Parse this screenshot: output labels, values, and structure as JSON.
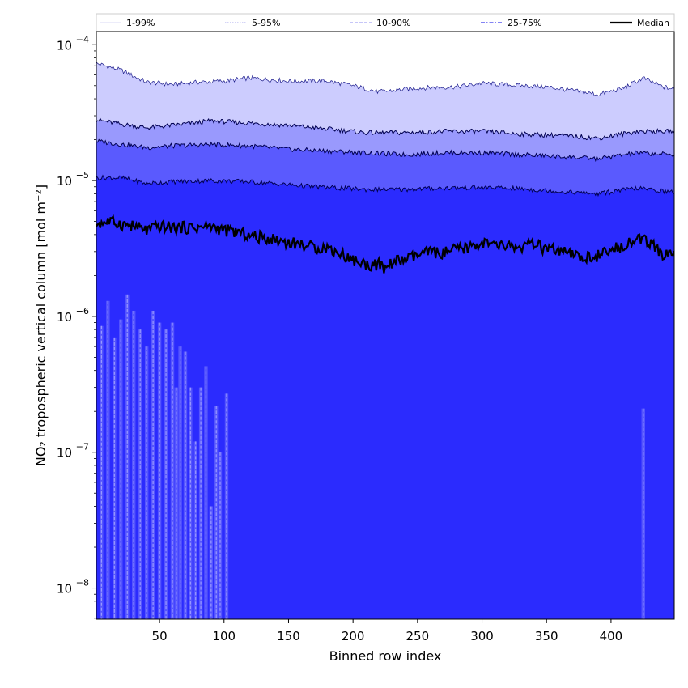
{
  "chart_data": {
    "type": "area",
    "x_range": [
      1,
      449
    ],
    "y_range": [
      5.9e-09,
      0.000125
    ],
    "y_scale": "log",
    "xlabel": "Binned row index",
    "ylabel": "NO₂ tropospheric vertical column [mol m⁻²]",
    "x_ticks": [
      {
        "value": 50,
        "label": "50"
      },
      {
        "value": 100,
        "label": "100"
      },
      {
        "value": 150,
        "label": "150"
      },
      {
        "value": 200,
        "label": "200"
      },
      {
        "value": 250,
        "label": "250"
      },
      {
        "value": 300,
        "label": "300"
      },
      {
        "value": 350,
        "label": "350"
      },
      {
        "value": 400,
        "label": "400"
      }
    ],
    "y_ticks": [
      {
        "value": 1e-08,
        "base": "10",
        "exp": "−8"
      },
      {
        "value": 1e-07,
        "base": "10",
        "exp": "−7"
      },
      {
        "value": 1e-06,
        "base": "10",
        "exp": "−6"
      },
      {
        "value": 1e-05,
        "base": "10",
        "exp": "−5"
      },
      {
        "value": 0.0001,
        "base": "10",
        "exp": "−4"
      }
    ],
    "legend": {
      "placement": "top, spanning full width",
      "entries": [
        {
          "label": "1-99%",
          "color": "#d8d8f4",
          "style": "solid-thin"
        },
        {
          "label": "5-95%",
          "color": "#a9a9ee",
          "style": "dotted"
        },
        {
          "label": "10-90%",
          "color": "#8c8cf0",
          "style": "dashed"
        },
        {
          "label": "25-75%",
          "color": "#5a5af0",
          "style": "dashdot"
        },
        {
          "label": "Median",
          "color": "#000000",
          "style": "solid-thick"
        }
      ]
    },
    "bands": [
      {
        "name": "1-99%",
        "color": "#ccccfe",
        "upper": [
          [
            1,
            7.3e-05
          ],
          [
            20,
            6.5e-05
          ],
          [
            40,
            5.3e-05
          ],
          [
            60,
            5.1e-05
          ],
          [
            80,
            5.3e-05
          ],
          [
            100,
            5.4e-05
          ],
          [
            120,
            5.7e-05
          ],
          [
            150,
            5.4e-05
          ],
          [
            180,
            5.4e-05
          ],
          [
            200,
            5e-05
          ],
          [
            220,
            4.5e-05
          ],
          [
            250,
            4.8e-05
          ],
          [
            280,
            4.9e-05
          ],
          [
            300,
            5.2e-05
          ],
          [
            330,
            5e-05
          ],
          [
            350,
            4.9e-05
          ],
          [
            370,
            4.6e-05
          ],
          [
            390,
            4.3e-05
          ],
          [
            410,
            4.8e-05
          ],
          [
            425,
            5.7e-05
          ],
          [
            440,
            4.9e-05
          ],
          [
            449,
            4.7e-05
          ]
        ],
        "lower_upper": [
          [
            1,
            2.8e-05
          ],
          [
            20,
            2.6e-05
          ],
          [
            40,
            2.45e-05
          ],
          [
            60,
            2.55e-05
          ],
          [
            90,
            2.75e-05
          ],
          [
            120,
            2.65e-05
          ],
          [
            150,
            2.55e-05
          ],
          [
            180,
            2.4e-05
          ],
          [
            210,
            2.25e-05
          ],
          [
            240,
            2.25e-05
          ],
          [
            270,
            2.3e-05
          ],
          [
            300,
            2.3e-05
          ],
          [
            330,
            2.2e-05
          ],
          [
            360,
            2.15e-05
          ],
          [
            390,
            2.05e-05
          ],
          [
            420,
            2.3e-05
          ],
          [
            449,
            2.3e-05
          ]
        ]
      },
      {
        "name": "5-95%",
        "color": "#9999fd",
        "upper": [
          [
            1,
            2.8e-05
          ],
          [
            20,
            2.6e-05
          ],
          [
            40,
            2.45e-05
          ],
          [
            60,
            2.55e-05
          ],
          [
            90,
            2.75e-05
          ],
          [
            120,
            2.65e-05
          ],
          [
            150,
            2.55e-05
          ],
          [
            180,
            2.4e-05
          ],
          [
            210,
            2.25e-05
          ],
          [
            240,
            2.25e-05
          ],
          [
            270,
            2.3e-05
          ],
          [
            300,
            2.3e-05
          ],
          [
            330,
            2.2e-05
          ],
          [
            360,
            2.15e-05
          ],
          [
            390,
            2.05e-05
          ],
          [
            420,
            2.3e-05
          ],
          [
            449,
            2.3e-05
          ]
        ],
        "lower_upper": [
          [
            1,
            1.95e-05
          ],
          [
            20,
            1.85e-05
          ],
          [
            40,
            1.75e-05
          ],
          [
            60,
            1.8e-05
          ],
          [
            90,
            1.85e-05
          ],
          [
            120,
            1.8e-05
          ],
          [
            150,
            1.7e-05
          ],
          [
            180,
            1.65e-05
          ],
          [
            210,
            1.6e-05
          ],
          [
            240,
            1.55e-05
          ],
          [
            270,
            1.6e-05
          ],
          [
            300,
            1.6e-05
          ],
          [
            330,
            1.55e-05
          ],
          [
            360,
            1.5e-05
          ],
          [
            390,
            1.45e-05
          ],
          [
            420,
            1.6e-05
          ],
          [
            449,
            1.55e-05
          ]
        ]
      },
      {
        "name": "10-90%",
        "color": "#5a5afe",
        "upper": [
          [
            1,
            1.95e-05
          ],
          [
            20,
            1.85e-05
          ],
          [
            40,
            1.75e-05
          ],
          [
            60,
            1.8e-05
          ],
          [
            90,
            1.85e-05
          ],
          [
            120,
            1.8e-05
          ],
          [
            150,
            1.7e-05
          ],
          [
            180,
            1.65e-05
          ],
          [
            210,
            1.6e-05
          ],
          [
            240,
            1.55e-05
          ],
          [
            270,
            1.6e-05
          ],
          [
            300,
            1.6e-05
          ],
          [
            330,
            1.55e-05
          ],
          [
            360,
            1.5e-05
          ],
          [
            390,
            1.45e-05
          ],
          [
            420,
            1.6e-05
          ],
          [
            449,
            1.55e-05
          ]
        ],
        "lower_upper": [
          [
            1,
            1.05e-05
          ],
          [
            20,
            1.05e-05
          ],
          [
            40,
            9.5e-06
          ],
          [
            60,
            9.8e-06
          ],
          [
            90,
            1e-05
          ],
          [
            120,
            9.8e-06
          ],
          [
            150,
            9.3e-06
          ],
          [
            180,
            8.9e-06
          ],
          [
            210,
            8.6e-06
          ],
          [
            240,
            8.6e-06
          ],
          [
            270,
            8.8e-06
          ],
          [
            300,
            8.9e-06
          ],
          [
            330,
            8.7e-06
          ],
          [
            360,
            8.3e-06
          ],
          [
            390,
            8e-06
          ],
          [
            420,
            8.8e-06
          ],
          [
            449,
            8.2e-06
          ]
        ]
      },
      {
        "name": "25-75%",
        "color": "#2b2bfe",
        "upper": [
          [
            1,
            1.05e-05
          ],
          [
            20,
            1.05e-05
          ],
          [
            40,
            9.5e-06
          ],
          [
            60,
            9.8e-06
          ],
          [
            90,
            1e-05
          ],
          [
            120,
            9.8e-06
          ],
          [
            150,
            9.3e-06
          ],
          [
            180,
            8.9e-06
          ],
          [
            210,
            8.6e-06
          ],
          [
            240,
            8.6e-06
          ],
          [
            270,
            8.8e-06
          ],
          [
            300,
            8.9e-06
          ],
          [
            330,
            8.7e-06
          ],
          [
            360,
            8.3e-06
          ],
          [
            390,
            8e-06
          ],
          [
            420,
            8.8e-06
          ],
          [
            449,
            8.2e-06
          ]
        ],
        "lower_upper": [
          [
            1,
            5.9e-09
          ],
          [
            449,
            5.9e-09
          ]
        ]
      }
    ],
    "median": [
      [
        1,
        4.8e-06
      ],
      [
        10,
        5e-06
      ],
      [
        20,
        4.8e-06
      ],
      [
        30,
        4.6e-06
      ],
      [
        40,
        4.3e-06
      ],
      [
        50,
        4.6e-06
      ],
      [
        60,
        4.5e-06
      ],
      [
        70,
        4.5e-06
      ],
      [
        80,
        4.5e-06
      ],
      [
        90,
        4.6e-06
      ],
      [
        100,
        4.3e-06
      ],
      [
        110,
        4.2e-06
      ],
      [
        120,
        3.9e-06
      ],
      [
        130,
        3.8e-06
      ],
      [
        140,
        3.7e-06
      ],
      [
        150,
        3.5e-06
      ],
      [
        160,
        3.4e-06
      ],
      [
        170,
        3.2e-06
      ],
      [
        180,
        3.2e-06
      ],
      [
        190,
        2.9e-06
      ],
      [
        200,
        2.6e-06
      ],
      [
        210,
        2.4e-06
      ],
      [
        220,
        2.4e-06
      ],
      [
        225,
        2.2e-06
      ],
      [
        230,
        2.5e-06
      ],
      [
        240,
        2.6e-06
      ],
      [
        250,
        2.8e-06
      ],
      [
        260,
        3e-06
      ],
      [
        270,
        2.9e-06
      ],
      [
        280,
        3.1e-06
      ],
      [
        290,
        3.2e-06
      ],
      [
        300,
        3.5e-06
      ],
      [
        310,
        3.3e-06
      ],
      [
        320,
        3.3e-06
      ],
      [
        330,
        3.2e-06
      ],
      [
        340,
        3.4e-06
      ],
      [
        350,
        3.1e-06
      ],
      [
        360,
        3e-06
      ],
      [
        370,
        2.8e-06
      ],
      [
        380,
        2.7e-06
      ],
      [
        390,
        2.8e-06
      ],
      [
        400,
        3e-06
      ],
      [
        410,
        3.4e-06
      ],
      [
        420,
        3.7e-06
      ],
      [
        430,
        3.5e-06
      ],
      [
        440,
        2.8e-06
      ],
      [
        449,
        3e-06
      ]
    ],
    "low_percentile_spikes": [
      {
        "x": 5,
        "top": 8.5e-07,
        "bottom": 5.9e-09
      },
      {
        "x": 10,
        "top": 1.3e-06,
        "bottom": 5.9e-09
      },
      {
        "x": 15,
        "top": 7e-07,
        "bottom": 5.9e-09
      },
      {
        "x": 20,
        "top": 9.5e-07,
        "bottom": 5.9e-09
      },
      {
        "x": 25,
        "top": 1.45e-06,
        "bottom": 5.9e-09
      },
      {
        "x": 30,
        "top": 1.1e-06,
        "bottom": 5.9e-09
      },
      {
        "x": 35,
        "top": 8e-07,
        "bottom": 5.9e-09
      },
      {
        "x": 40,
        "top": 6e-07,
        "bottom": 5.9e-09
      },
      {
        "x": 45,
        "top": 1.1e-06,
        "bottom": 5.9e-09
      },
      {
        "x": 50,
        "top": 9e-07,
        "bottom": 5.9e-09
      },
      {
        "x": 55,
        "top": 8e-07,
        "bottom": 5.9e-09
      },
      {
        "x": 60,
        "top": 9e-07,
        "bottom": 5.9e-09
      },
      {
        "x": 63,
        "top": 3e-07,
        "bottom": 5.9e-09
      },
      {
        "x": 66,
        "top": 6e-07,
        "bottom": 5.9e-09
      },
      {
        "x": 70,
        "top": 5.5e-07,
        "bottom": 5.9e-09
      },
      {
        "x": 74,
        "top": 3e-07,
        "bottom": 5.9e-09
      },
      {
        "x": 78,
        "top": 1.2e-07,
        "bottom": 5.9e-09
      },
      {
        "x": 82,
        "top": 3e-07,
        "bottom": 5.9e-09
      },
      {
        "x": 86,
        "top": 4.3e-07,
        "bottom": 5.9e-09
      },
      {
        "x": 90,
        "top": 4e-08,
        "bottom": 5.9e-09
      },
      {
        "x": 94,
        "top": 2.2e-07,
        "bottom": 5.9e-09
      },
      {
        "x": 97,
        "top": 1e-07,
        "bottom": 5.9e-09
      },
      {
        "x": 102,
        "top": 2.7e-07,
        "bottom": 5.9e-09
      },
      {
        "x": 425,
        "top": 2.1e-07,
        "bottom": 5.9e-09
      }
    ]
  }
}
